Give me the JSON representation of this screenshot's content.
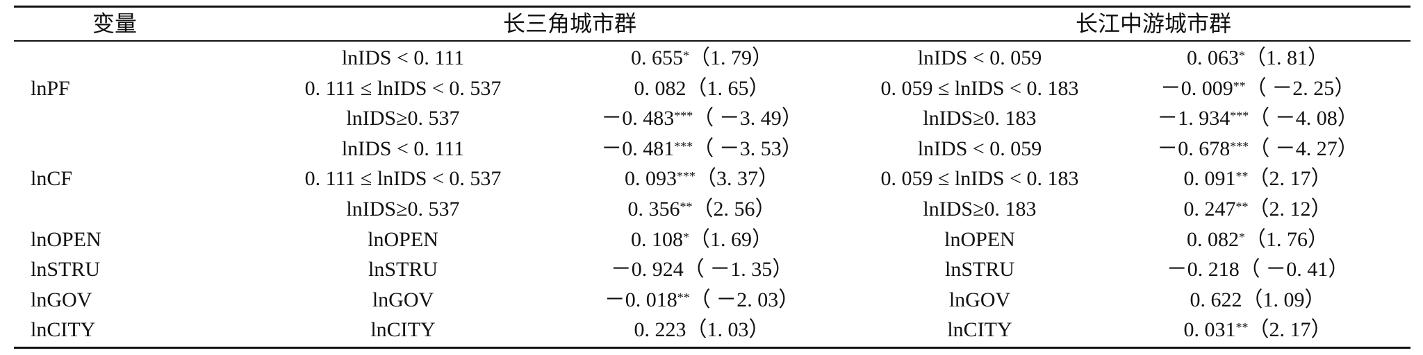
{
  "header": {
    "variable": "变量",
    "group1": "长三角城市群",
    "group2": "长江中游城市群"
  },
  "rows": [
    {
      "var": "",
      "c1": "lnIDS < 0. 111",
      "v1": "0. 655",
      "s1": "*",
      "p1": "（1. 79）",
      "c3": "lnIDS < 0. 059",
      "v2": "0. 063",
      "s2": "*",
      "p2": "（1. 81）"
    },
    {
      "var": "lnPF",
      "c1": "0. 111 ≤ lnIDS < 0. 537",
      "v1": "0. 082（1. 65）",
      "s1": "",
      "p1": "",
      "c3": "0. 059 ≤ lnIDS < 0. 183",
      "v2": "－0. 009",
      "s2": "**",
      "p2": "（ －2. 25）"
    },
    {
      "var": "",
      "c1": "lnIDS≥0. 537",
      "v1": "－0. 483",
      "s1": "***",
      "p1": "（ －3. 49）",
      "c3": "lnIDS≥0. 183",
      "v2": "－1. 934",
      "s2": "***",
      "p2": "（ －4. 08）"
    },
    {
      "var": "",
      "c1": "lnIDS < 0. 111",
      "v1": "－0. 481",
      "s1": "***",
      "p1": "（ －3. 53）",
      "c3": "lnIDS < 0. 059",
      "v2": "－0. 678",
      "s2": "***",
      "p2": "（ －4. 27）"
    },
    {
      "var": "lnCF",
      "c1": "0. 111 ≤ lnIDS < 0. 537",
      "v1": "0. 093",
      "s1": "***",
      "p1": "（3. 37）",
      "c3": "0. 059 ≤ lnIDS < 0. 183",
      "v2": "0. 091",
      "s2": "**",
      "p2": "（2. 17）"
    },
    {
      "var": "",
      "c1": "lnIDS≥0. 537",
      "v1": "0. 356",
      "s1": "**",
      "p1": "（2. 56）",
      "c3": "lnIDS≥0. 183",
      "v2": "0. 247",
      "s2": "**",
      "p2": "（2. 12）"
    },
    {
      "var": "lnOPEN",
      "c1": "lnOPEN",
      "v1": "0. 108",
      "s1": "*",
      "p1": "（1. 69）",
      "c3": "lnOPEN",
      "v2": "0. 082",
      "s2": "*",
      "p2": "（1. 76）"
    },
    {
      "var": "lnSTRU",
      "c1": "lnSTRU",
      "v1": "－0. 924（ －1. 35）",
      "s1": "",
      "p1": "",
      "c3": "lnSTRU",
      "v2": "－0. 218（ －0. 41）",
      "s2": "",
      "p2": ""
    },
    {
      "var": "lnGOV",
      "c1": "lnGOV",
      "v1": "－0. 018",
      "s1": "**",
      "p1": "（ －2. 03）",
      "c3": "lnGOV",
      "v2": "0. 622（1. 09）",
      "s2": "",
      "p2": ""
    },
    {
      "var": "lnCITY",
      "c1": "lnCITY",
      "v1": "0. 223（1. 03）",
      "s1": "",
      "p1": "",
      "c3": "lnCITY",
      "v2": "0. 031",
      "s2": "**",
      "p2": "（2. 17）"
    }
  ]
}
